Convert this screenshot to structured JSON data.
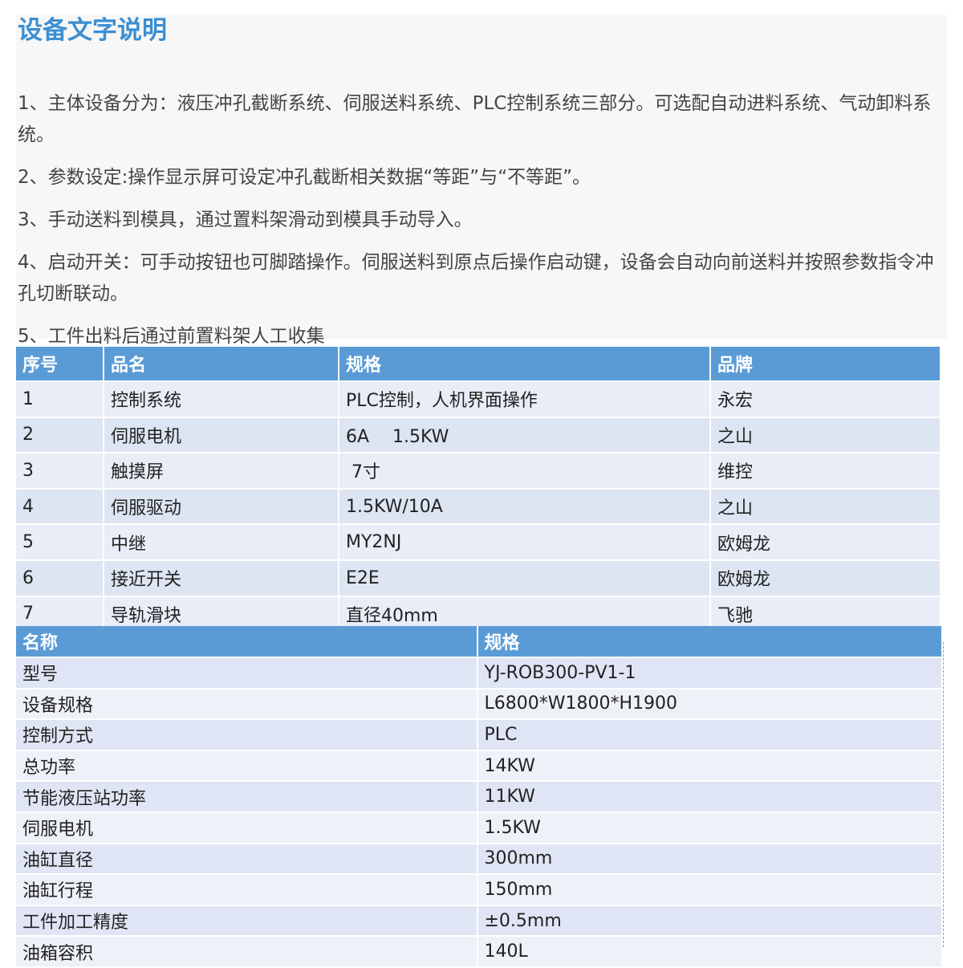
{
  "title": "设备文字说明",
  "paragraphs": [
    "1、主体设备分为：液压冲孔截断系统、伺服送料系统、PLC控制系统三部分。可选配自动进料系统、气动卸料系统。",
    "2、参数设定:操作显示屏可设定冲孔截断相关数据“等距”与“不等距”。",
    "3、手动送料到模具，通过置料架滑动到模具手动导入。",
    "4、启动开关：可手动按钮也可脚踏操作。伺服送料到原点后操作启动键，设备会自动向前送料并按照参数指令冲孔切断联动。",
    "5、工件出料后通过前置料架人工收集"
  ],
  "table1": {
    "header": [
      "序号",
      "品名",
      "规格",
      "品牌"
    ],
    "rows": [
      [
        "1",
        "控制系统",
        "PLC控制，人机界面操作",
        "永宏"
      ],
      [
        "2",
        "伺服电机",
        "6A　 1.5KW",
        "之山"
      ],
      [
        "3",
        "触摸屏",
        " 7寸",
        "维控"
      ],
      [
        "4",
        "伺服驱动",
        "1.5KW/10A",
        "之山"
      ],
      [
        "5",
        "中继",
        "MY2NJ",
        "欧姆龙"
      ],
      [
        "6",
        "接近开关",
        "E2E",
        "欧姆龙"
      ],
      [
        "7",
        "导轨滑块",
        "直径40mm",
        "飞驰"
      ]
    ]
  },
  "table2": {
    "header": [
      "名称",
      "规格"
    ],
    "rows": [
      [
        "型号",
        "YJ-ROB300-PV1-1"
      ],
      [
        "设备规格",
        "L6800*W1800*H1900"
      ],
      [
        "控制方式",
        "PLC"
      ],
      [
        "总功率",
        "14KW"
      ],
      [
        "节能液压站功率",
        "11KW"
      ],
      [
        "伺服电机",
        "1.5KW"
      ],
      [
        "油缸直径",
        "300mm"
      ],
      [
        "油缸行程",
        "150mm"
      ],
      [
        "工件加工精度",
        "±0.5mm"
      ],
      [
        "油箱容积",
        "140L"
      ]
    ]
  }
}
